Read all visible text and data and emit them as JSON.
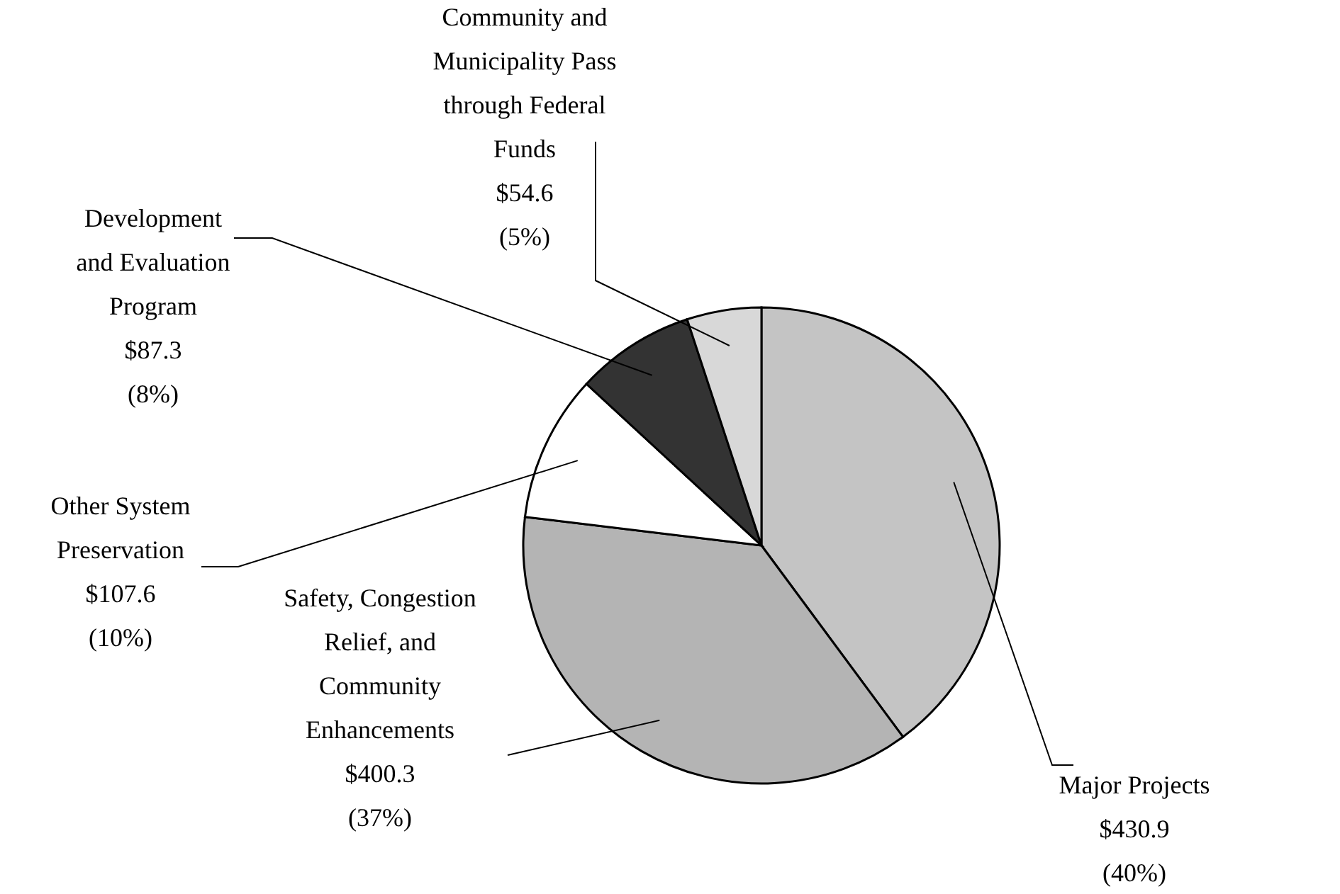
{
  "chart_data": {
    "type": "pie",
    "categories": [
      "Major Projects",
      "Safety, Congestion Relief, and Community Enhancements",
      "Other System Preservation",
      "Development and Evaluation Program",
      "Community and Municipality Pass through Federal Funds"
    ],
    "values": [
      430.9,
      400.3,
      107.6,
      87.3,
      54.6
    ],
    "value_labels": [
      "$430.9\n(40%)",
      "$400.3\n(37%)",
      "$107.6\n(10%)",
      "$87.3\n(8%)",
      "$54.6\n(5%)"
    ],
    "colors": [
      "#c4c4c4",
      "#b4b4b4",
      "#ffffff",
      "#333333",
      "#d8d8d8"
    ]
  }
}
